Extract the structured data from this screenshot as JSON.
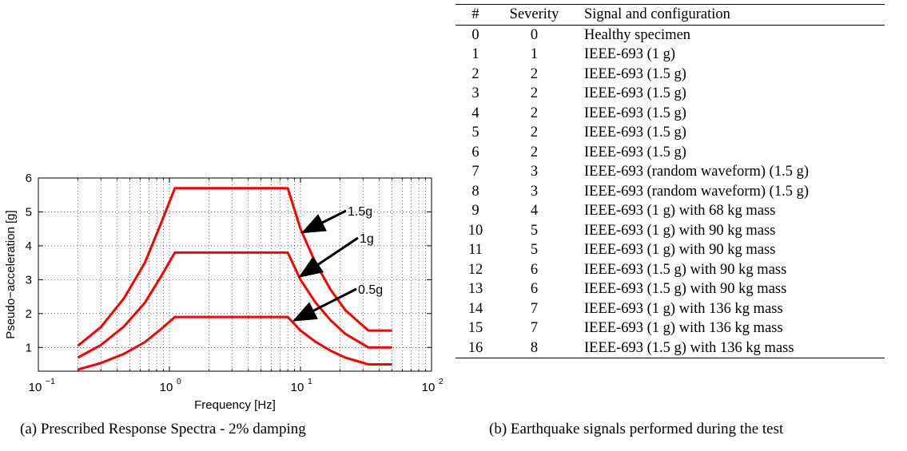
{
  "figure_a": {
    "caption": "(a) Prescribed Response Spectra - 2% damping",
    "chart_data": {
      "type": "line",
      "title": "",
      "xlabel": "Frequency [Hz]",
      "ylabel": "Pseudo−acceleration [g]",
      "xscale": "log",
      "xlim": [
        0.1,
        100
      ],
      "ylim": [
        0.3,
        6
      ],
      "x_ticks": [
        0.1,
        1,
        10,
        100
      ],
      "x_tick_labels": [
        "10",
        "10",
        "10",
        "10"
      ],
      "x_tick_exponents": [
        "−1",
        "0",
        "1",
        "2"
      ],
      "y_ticks": [
        1,
        2,
        3,
        4,
        5,
        6
      ],
      "y_tick_labels": [
        "1",
        "2",
        "3",
        "4",
        "5",
        "6"
      ],
      "grid": true,
      "line_color": "#ff0000",
      "series": [
        {
          "name": "1.5g",
          "points": [
            [
              0.2,
              1.05
            ],
            [
              0.3,
              1.6
            ],
            [
              0.45,
              2.45
            ],
            [
              0.65,
              3.5
            ],
            [
              0.85,
              4.6
            ],
            [
              1.1,
              5.7
            ],
            [
              8,
              5.7
            ],
            [
              10,
              4.5
            ],
            [
              13,
              3.5
            ],
            [
              17,
              2.7
            ],
            [
              22,
              2.1
            ],
            [
              33,
              1.5
            ],
            [
              50,
              1.5
            ]
          ]
        },
        {
          "name": "1g",
          "points": [
            [
              0.2,
              0.7
            ],
            [
              0.3,
              1.07
            ],
            [
              0.45,
              1.62
            ],
            [
              0.65,
              2.32
            ],
            [
              0.85,
              3.05
            ],
            [
              1.1,
              3.8
            ],
            [
              8,
              3.8
            ],
            [
              10,
              3.0
            ],
            [
              13,
              2.33
            ],
            [
              17,
              1.8
            ],
            [
              22,
              1.4
            ],
            [
              33,
              1.0
            ],
            [
              50,
              1.0
            ]
          ]
        },
        {
          "name": "0.5g",
          "points": [
            [
              0.2,
              0.35
            ],
            [
              0.3,
              0.54
            ],
            [
              0.45,
              0.81
            ],
            [
              0.65,
              1.16
            ],
            [
              0.85,
              1.52
            ],
            [
              1.1,
              1.9
            ],
            [
              8,
              1.9
            ],
            [
              10,
              1.5
            ],
            [
              13,
              1.17
            ],
            [
              17,
              0.9
            ],
            [
              22,
              0.7
            ],
            [
              33,
              0.5
            ],
            [
              50,
              0.5
            ]
          ]
        }
      ],
      "annotations": [
        {
          "text": "1.5g",
          "arrow_to": [
            10.5,
            4.4
          ]
        },
        {
          "text": "1g",
          "arrow_to": [
            10,
            3.1
          ]
        },
        {
          "text": "0.5g",
          "arrow_to": [
            9,
            1.8
          ]
        }
      ]
    }
  },
  "figure_b": {
    "caption": "(b) Earthquake signals performed during the test",
    "headers": [
      "#",
      "Severity",
      "Signal and configuration"
    ],
    "rows": [
      [
        "0",
        "0",
        "Healthy specimen"
      ],
      [
        "1",
        "1",
        "IEEE-693 (1 g)"
      ],
      [
        "2",
        "2",
        "IEEE-693 (1.5 g)"
      ],
      [
        "3",
        "2",
        "IEEE-693 (1.5 g)"
      ],
      [
        "4",
        "2",
        "IEEE-693 (1.5 g)"
      ],
      [
        "5",
        "2",
        "IEEE-693 (1.5 g)"
      ],
      [
        "6",
        "2",
        "IEEE-693 (1.5 g)"
      ],
      [
        "7",
        "3",
        "IEEE-693 (random waveform) (1.5 g)"
      ],
      [
        "8",
        "3",
        "IEEE-693 (random waveform) (1.5 g)"
      ],
      [
        "9",
        "4",
        "IEEE-693 (1 g) with 68 kg mass"
      ],
      [
        "10",
        "5",
        "IEEE-693 (1 g) with 90 kg mass"
      ],
      [
        "11",
        "5",
        "IEEE-693 (1 g) with 90 kg mass"
      ],
      [
        "12",
        "6",
        "IEEE-693 (1.5 g) with 90 kg mass"
      ],
      [
        "13",
        "6",
        "IEEE-693 (1.5 g) with 90 kg mass"
      ],
      [
        "14",
        "7",
        "IEEE-693 (1 g) with 136 kg mass"
      ],
      [
        "15",
        "7",
        "IEEE-693 (1 g) with 136 kg mass"
      ],
      [
        "16",
        "8",
        "IEEE-693 (1.5 g) with 136 kg mass"
      ]
    ]
  }
}
